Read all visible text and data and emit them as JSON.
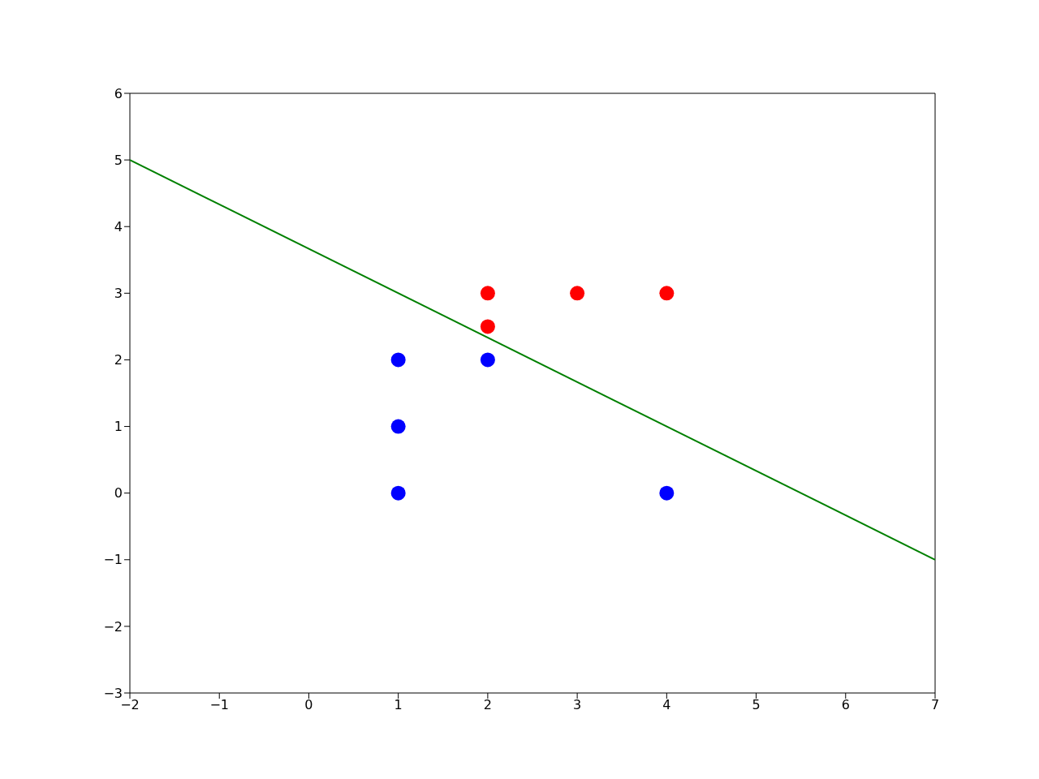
{
  "chart_data": {
    "type": "scatter",
    "grid": false,
    "legend": false,
    "series": [
      {
        "color": "#ff0000",
        "marker": "circle",
        "x": [
          2,
          3,
          4,
          2
        ],
        "values": [
          3,
          3,
          3,
          2.5
        ]
      },
      {
        "color": "#0000ff",
        "marker": "circle",
        "x": [
          1,
          1,
          1,
          2,
          4
        ],
        "values": [
          2,
          1,
          0,
          2,
          0
        ]
      },
      {
        "type": "line",
        "color": "#008000",
        "marker": "none",
        "x": [
          -2,
          7
        ],
        "values": [
          5,
          -1
        ]
      }
    ],
    "xlim": [
      -2,
      7
    ],
    "xticks": [
      -2,
      -1,
      0,
      1,
      2,
      3,
      4,
      5,
      6,
      7
    ],
    "ylim": [
      -3,
      6
    ],
    "yticks": [
      -3,
      -2,
      -1,
      0,
      1,
      2,
      3,
      4,
      5,
      6
    ]
  }
}
